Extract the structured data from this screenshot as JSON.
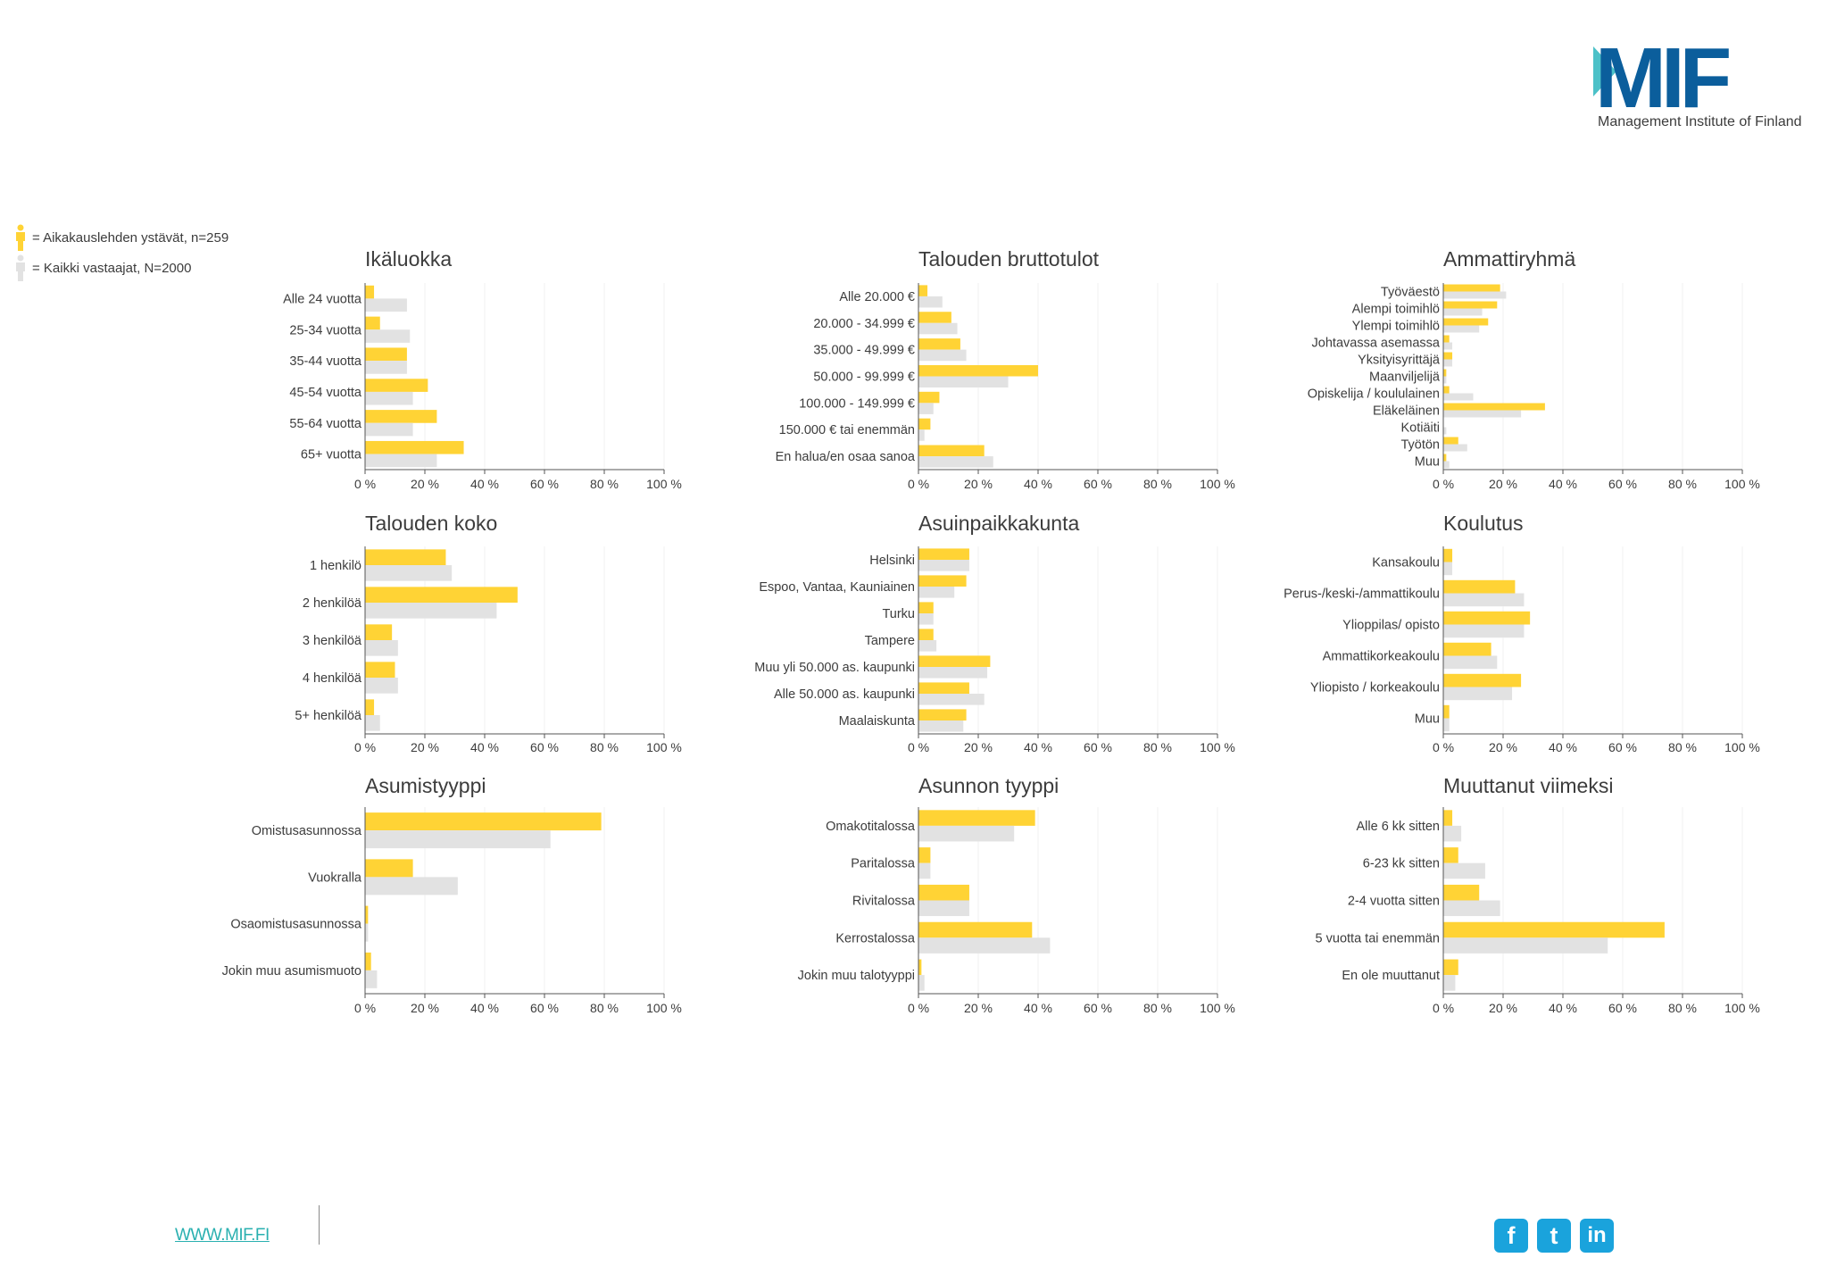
{
  "brand": {
    "logo_text": "MIF",
    "tagline": "Management Institute of Finland",
    "colors": {
      "primary": "#0b5e9c",
      "accent": "#4cc1c8",
      "series_a": "#ffd335",
      "series_b": "#e2e2e2"
    }
  },
  "legend": [
    {
      "label": "= Aikakauslehden ystävät, n=259",
      "color": "#ffd335",
      "icon": "person-icon"
    },
    {
      "label": "= Kaikki vastaajat, N=2000",
      "color": "#e2e2e2",
      "icon": "person-icon"
    }
  ],
  "footer": {
    "url": "WWW.MIF.FI",
    "social": [
      {
        "name": "facebook-icon",
        "glyph": "f"
      },
      {
        "name": "twitter-icon",
        "glyph": "t"
      },
      {
        "name": "linkedin-icon",
        "glyph": "in"
      }
    ]
  },
  "chart_data": [
    {
      "type": "bar",
      "orientation": "horizontal",
      "title": "Ikäluokka",
      "categories": [
        "Alle 24 vuotta",
        "25-34 vuotta",
        "35-44 vuotta",
        "45-54 vuotta",
        "55-64 vuotta",
        "65+ vuotta"
      ],
      "series": [
        {
          "name": "Aikakauslehden ystävät",
          "values": [
            3,
            5,
            14,
            21,
            24,
            33
          ]
        },
        {
          "name": "Kaikki vastaajat",
          "values": [
            14,
            15,
            14,
            16,
            16,
            24
          ]
        }
      ],
      "xlim": [
        0,
        100
      ],
      "xticks": [
        "0 %",
        "20 %",
        "40 %",
        "60 %",
        "80 %",
        "100 %"
      ]
    },
    {
      "type": "bar",
      "orientation": "horizontal",
      "title": "Talouden bruttotulot",
      "categories": [
        "Alle 20.000 €",
        "20.000 - 34.999 €",
        "35.000 - 49.999 €",
        "50.000 - 99.999 €",
        "100.000 - 149.999 €",
        "150.000 € tai enemmän",
        "En halua/en osaa sanoa"
      ],
      "series": [
        {
          "name": "Aikakauslehden ystävät",
          "values": [
            3,
            11,
            14,
            40,
            7,
            4,
            22
          ]
        },
        {
          "name": "Kaikki vastaajat",
          "values": [
            8,
            13,
            16,
            30,
            5,
            2,
            25
          ]
        }
      ],
      "xlim": [
        0,
        100
      ],
      "xticks": [
        "0 %",
        "20 %",
        "40 %",
        "60 %",
        "80 %",
        "100 %"
      ]
    },
    {
      "type": "bar",
      "orientation": "horizontal",
      "title": "Ammattiryhmä",
      "categories": [
        "Työväestö",
        "Alempi toimihlö",
        "Ylempi toimihlö",
        "Johtavassa asemassa",
        "Yksityisyrittäjä",
        "Maanviljelijä",
        "Opiskelija / koululainen",
        "Eläkeläinen",
        "Kotiäiti",
        "Työtön",
        "Muu"
      ],
      "series": [
        {
          "name": "Aikakauslehden ystävät",
          "values": [
            19,
            18,
            15,
            2,
            3,
            1,
            2,
            34,
            0,
            5,
            1
          ]
        },
        {
          "name": "Kaikki vastaajat",
          "values": [
            21,
            13,
            12,
            3,
            3,
            1,
            10,
            26,
            1,
            8,
            2
          ]
        }
      ],
      "xlim": [
        0,
        100
      ],
      "xticks": [
        "0 %",
        "20 %",
        "40 %",
        "60 %",
        "80 %",
        "100 %"
      ]
    },
    {
      "type": "bar",
      "orientation": "horizontal",
      "title": "Talouden koko",
      "categories": [
        "1 henkilö",
        "2 henkilöä",
        "3 henkilöä",
        "4 henkilöä",
        "5+ henkilöä"
      ],
      "series": [
        {
          "name": "Aikakauslehden ystävät",
          "values": [
            27,
            51,
            9,
            10,
            3
          ]
        },
        {
          "name": "Kaikki vastaajat",
          "values": [
            29,
            44,
            11,
            11,
            5
          ]
        }
      ],
      "xlim": [
        0,
        100
      ],
      "xticks": [
        "0 %",
        "20 %",
        "40 %",
        "60 %",
        "80 %",
        "100 %"
      ]
    },
    {
      "type": "bar",
      "orientation": "horizontal",
      "title": "Asuinpaikkakunta",
      "categories": [
        "Helsinki",
        "Espoo, Vantaa, Kauniainen",
        "Turku",
        "Tampere",
        "Muu yli 50.000 as. kaupunki",
        "Alle 50.000 as. kaupunki",
        "Maalaiskunta"
      ],
      "series": [
        {
          "name": "Aikakauslehden ystävät",
          "values": [
            17,
            16,
            5,
            5,
            24,
            17,
            16
          ]
        },
        {
          "name": "Kaikki vastaajat",
          "values": [
            17,
            12,
            5,
            6,
            23,
            22,
            15
          ]
        }
      ],
      "xlim": [
        0,
        100
      ],
      "xticks": [
        "0 %",
        "20 %",
        "40 %",
        "60 %",
        "80 %",
        "100 %"
      ]
    },
    {
      "type": "bar",
      "orientation": "horizontal",
      "title": "Koulutus",
      "categories": [
        "Kansakoulu",
        "Perus-/keski-/ammattikoulu",
        "Ylioppilas/ opisto",
        "Ammattikorkeakoulu",
        "Yliopisto / korkeakoulu",
        "Muu"
      ],
      "series": [
        {
          "name": "Aikakauslehden ystävät",
          "values": [
            3,
            24,
            29,
            16,
            26,
            2
          ]
        },
        {
          "name": "Kaikki vastaajat",
          "values": [
            3,
            27,
            27,
            18,
            23,
            2
          ]
        }
      ],
      "xlim": [
        0,
        100
      ],
      "xticks": [
        "0 %",
        "20 %",
        "40 %",
        "60 %",
        "80 %",
        "100 %"
      ]
    },
    {
      "type": "bar",
      "orientation": "horizontal",
      "title": "Asumistyyppi",
      "categories": [
        "Omistusasunnossa",
        "Vuokralla",
        "Osaomistusasunnossa",
        "Jokin muu asumismuoto"
      ],
      "series": [
        {
          "name": "Aikakauslehden ystävät",
          "values": [
            79,
            16,
            1,
            2
          ]
        },
        {
          "name": "Kaikki vastaajat",
          "values": [
            62,
            31,
            1,
            4
          ]
        }
      ],
      "xlim": [
        0,
        100
      ],
      "xticks": [
        "0 %",
        "20 %",
        "40 %",
        "60 %",
        "80 %",
        "100 %"
      ]
    },
    {
      "type": "bar",
      "orientation": "horizontal",
      "title": "Asunnon tyyppi",
      "categories": [
        "Omakotitalossa",
        "Paritalossa",
        "Rivitalossa",
        "Kerrostalossa",
        "Jokin muu talotyyppi"
      ],
      "series": [
        {
          "name": "Aikakauslehden ystävät",
          "values": [
            39,
            4,
            17,
            38,
            1
          ]
        },
        {
          "name": "Kaikki vastaajat",
          "values": [
            32,
            4,
            17,
            44,
            2
          ]
        }
      ],
      "xlim": [
        0,
        100
      ],
      "xticks": [
        "0 %",
        "20 %",
        "40 %",
        "60 %",
        "80 %",
        "100 %"
      ]
    },
    {
      "type": "bar",
      "orientation": "horizontal",
      "title": "Muuttanut viimeksi",
      "categories": [
        "Alle 6 kk sitten",
        "6-23 kk sitten",
        "2-4 vuotta sitten",
        "5 vuotta tai enemmän",
        "En ole muuttanut"
      ],
      "series": [
        {
          "name": "Aikakauslehden ystävät",
          "values": [
            3,
            5,
            12,
            74,
            5
          ]
        },
        {
          "name": "Kaikki vastaajat",
          "values": [
            6,
            14,
            19,
            55,
            4
          ]
        }
      ],
      "xlim": [
        0,
        100
      ],
      "xticks": [
        "0 %",
        "20 %",
        "40 %",
        "60 %",
        "80 %",
        "100 %"
      ]
    }
  ]
}
